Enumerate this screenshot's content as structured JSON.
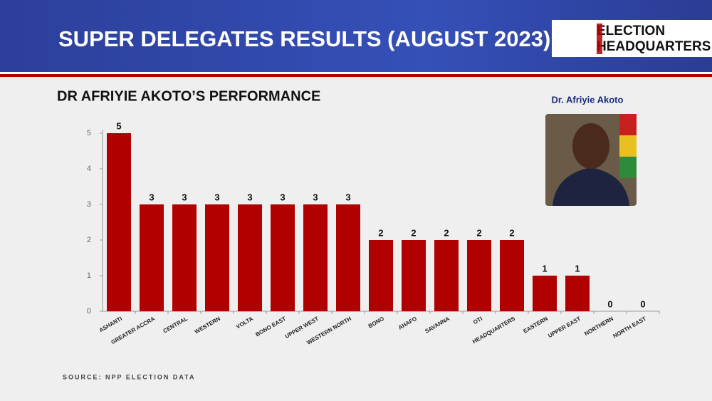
{
  "header": {
    "title": "SUPER DELEGATES RESULTS (AUGUST 2023)",
    "logo_line1": "ELECTION",
    "logo_line2": "HEADQUARTERS"
  },
  "photo_caption": "Dr. Afriyie Akoto",
  "source": "SOURCE: NPP ELECTION DATA",
  "chart_data": {
    "type": "bar",
    "title": "DR AFRIYIE AKOTO’S PERFORMANCE",
    "categories": [
      "ASHANTI",
      "GREATER ACCRA",
      "CENTRAL",
      "WESTERN",
      "VOLTA",
      "BONO EAST",
      "UPPER WEST",
      "WESTERN NORTH",
      "BONO",
      "AHAFO",
      "SAVANNA",
      "OTI",
      "HEADQUARTERS",
      "EASTERN",
      "UPPER EAST",
      "NORTHERN",
      "NORTH EAST"
    ],
    "values": [
      5,
      3,
      3,
      3,
      3,
      3,
      3,
      3,
      2,
      2,
      2,
      2,
      2,
      1,
      1,
      0,
      0
    ],
    "color": "#b00000",
    "ylim": [
      0,
      5
    ],
    "yticks": [
      0,
      1,
      2,
      3,
      4,
      5
    ],
    "grid": false
  }
}
